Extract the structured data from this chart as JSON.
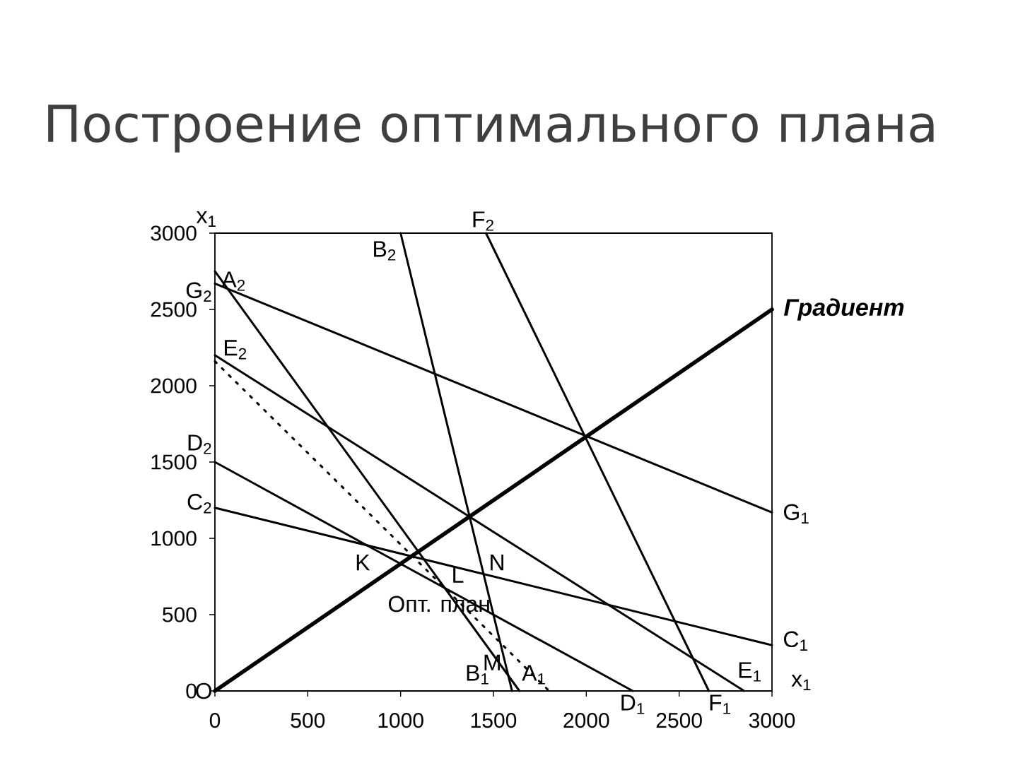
{
  "chart_data": {
    "type": "line",
    "title": "Построение оптимального плана",
    "xlabel": "x$_{1}$",
    "ylabel": "x$_{1}$",
    "xlim": [
      0,
      3000
    ],
    "ylim": [
      0,
      3000
    ],
    "xticks": [
      0,
      500,
      1000,
      1500,
      2000,
      2500,
      3000
    ],
    "yticks": [
      0,
      500,
      1000,
      1500,
      2000,
      2500,
      3000
    ],
    "series": [
      {
        "name": "Градиент",
        "color": "#000000",
        "x": [
          0,
          3000
        ],
        "values": [
          0,
          2500
        ]
      },
      {
        "color": "#000000",
        "x": [
          0,
          1640
        ],
        "values": [
          2750,
          0
        ]
      },
      {
        "color": "#000000",
        "x": [
          1000,
          1600
        ],
        "values": [
          3000,
          0
        ]
      },
      {
        "color": "#000000",
        "x": [
          0,
          3000
        ],
        "values": [
          1200,
          300
        ]
      },
      {
        "color": "#000000",
        "x": [
          0,
          2250
        ],
        "values": [
          1500,
          0
        ]
      },
      {
        "color": "#000000",
        "x": [
          0,
          2850
        ],
        "values": [
          2200,
          0
        ]
      },
      {
        "color": "#000000",
        "x": [
          1460,
          2660
        ],
        "values": [
          3000,
          0
        ]
      },
      {
        "color": "#000000",
        "x": [
          0,
          3000
        ],
        "values": [
          2670,
          1170
        ]
      },
      {
        "color": "#000000",
        "x": [
          0,
          1800
        ],
        "values": [
          2160,
          0
        ],
        "line_style": "dotted"
      }
    ],
    "annotations": [
      {
        "text": "A$_{2}$",
        "x": 0,
        "y": 2750
      },
      {
        "text": "B$_{2}$",
        "x": 1000,
        "y": 3000
      },
      {
        "text": "C$_{2}$",
        "x": 0,
        "y": 1200
      },
      {
        "text": "D$_{2}$",
        "x": 0,
        "y": 1500
      },
      {
        "text": "E$_{2}$",
        "x": 0,
        "y": 2200
      },
      {
        "text": "F$_{2}$",
        "x": 1460,
        "y": 3000
      },
      {
        "text": "G$_{2}$",
        "x": 0,
        "y": 2670
      },
      {
        "text": "A$_{1}$",
        "x": 1640,
        "y": 0
      },
      {
        "text": "B$_{1}$",
        "x": 1600,
        "y": 0
      },
      {
        "text": "C$_{1}$",
        "x": 3000,
        "y": 300
      },
      {
        "text": "D$_{1}$",
        "x": 2250,
        "y": 0
      },
      {
        "text": "E$_{1}$",
        "x": 2850,
        "y": 0
      },
      {
        "text": "F$_{1}$",
        "x": 2660,
        "y": 0
      },
      {
        "text": "G$_{1}$",
        "x": 3000,
        "y": 1170
      },
      {
        "text": "K",
        "x": 818,
        "y": 955
      },
      {
        "text": "L",
        "x": 1238,
        "y": 675
      },
      {
        "text": "M",
        "x": 1580,
        "y": 101
      },
      {
        "text": "N",
        "x": 1447,
        "y": 766
      },
      {
        "text": "O",
        "x": 0,
        "y": 0
      },
      {
        "text": "Опт. план",
        "x": 1238,
        "y": 675
      }
    ]
  }
}
